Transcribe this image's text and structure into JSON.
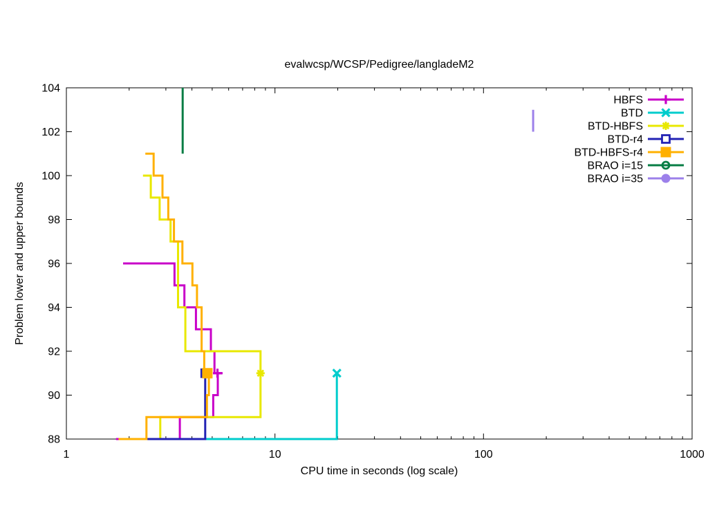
{
  "chart_data": {
    "type": "line",
    "title": "evalwcsp/WCSP/Pedigree/langladeM2",
    "xlabel": "CPU time in seconds (log scale)",
    "ylabel": "Problem lower and upper bounds",
    "x_scale": "log",
    "grid": false,
    "legend_position": "top-right",
    "xlim": [
      1,
      1000
    ],
    "ylim": [
      88,
      104
    ],
    "x_ticks": [
      1,
      10,
      100,
      1000
    ],
    "x_tick_labels": [
      "1",
      "10",
      "100",
      "1000"
    ],
    "y_ticks": [
      88,
      90,
      92,
      94,
      96,
      98,
      100,
      102,
      104
    ],
    "y_tick_labels": [
      "88",
      "90",
      "92",
      "94",
      "96",
      "98",
      "100",
      "102",
      "104"
    ],
    "series": [
      {
        "name": "HBFS",
        "color": "#c800c8",
        "marker": "plus",
        "lines": [
          [
            [
              1.87,
              96
            ],
            [
              3.3,
              96
            ],
            [
              3.3,
              95
            ],
            [
              3.68,
              95
            ],
            [
              3.68,
              94
            ],
            [
              4.18,
              94
            ],
            [
              4.18,
              93
            ],
            [
              4.93,
              93
            ],
            [
              4.93,
              92
            ],
            [
              5.13,
              92
            ],
            [
              5.13,
              91
            ],
            [
              5.61,
              91
            ]
          ],
          [
            [
              1.73,
              88
            ],
            [
              3.5,
              88
            ],
            [
              3.5,
              89
            ],
            [
              5.06,
              89
            ],
            [
              5.06,
              90
            ],
            [
              5.32,
              90
            ],
            [
              5.32,
              91
            ],
            [
              5.61,
              91
            ]
          ]
        ],
        "final_point": [
          5.3,
          91
        ]
      },
      {
        "name": "BTD",
        "color": "#00cccc",
        "marker": "cross",
        "lines": [
          [
            [
              1.78,
              88
            ],
            [
              19.8,
              88
            ],
            [
              19.8,
              91
            ]
          ]
        ],
        "final_point": [
          19.8,
          91
        ]
      },
      {
        "name": "BTD-HBFS",
        "color": "#e8e800",
        "marker": "asterisk",
        "lines": [
          [
            [
              2.33,
              100
            ],
            [
              2.54,
              100
            ],
            [
              2.54,
              99
            ],
            [
              2.8,
              99
            ],
            [
              2.8,
              98
            ],
            [
              3.16,
              98
            ],
            [
              3.16,
              97
            ],
            [
              3.43,
              97
            ],
            [
              3.43,
              94
            ],
            [
              3.72,
              94
            ],
            [
              3.72,
              92
            ],
            [
              8.53,
              92
            ],
            [
              8.53,
              91
            ]
          ],
          [
            [
              1.78,
              88
            ],
            [
              2.82,
              88
            ],
            [
              2.82,
              89
            ],
            [
              8.53,
              89
            ],
            [
              8.53,
              91
            ]
          ]
        ],
        "final_point": [
          8.53,
          91
        ]
      },
      {
        "name": "BTD-r4",
        "color": "#2222b4",
        "marker": "open-square",
        "lines": [
          [
            [
              1.78,
              88
            ],
            [
              4.63,
              88
            ],
            [
              4.63,
              91
            ]
          ]
        ],
        "final_point": [
          4.63,
          91
        ]
      },
      {
        "name": "BTD-HBFS-r4",
        "color": "#ffb000",
        "marker": "filled-square",
        "lines": [
          [
            [
              2.39,
              101
            ],
            [
              2.62,
              101
            ],
            [
              2.62,
              100
            ],
            [
              2.89,
              100
            ],
            [
              2.89,
              99
            ],
            [
              3.08,
              99
            ],
            [
              3.08,
              98
            ],
            [
              3.28,
              98
            ],
            [
              3.28,
              97
            ],
            [
              3.6,
              97
            ],
            [
              3.6,
              96
            ],
            [
              4.02,
              96
            ],
            [
              4.02,
              95
            ],
            [
              4.23,
              95
            ],
            [
              4.23,
              94
            ],
            [
              4.45,
              94
            ],
            [
              4.45,
              92
            ],
            [
              4.58,
              92
            ],
            [
              4.58,
              91
            ],
            [
              4.95,
              91
            ]
          ],
          [
            [
              1.78,
              88
            ],
            [
              2.42,
              88
            ],
            [
              2.42,
              89
            ],
            [
              4.72,
              89
            ],
            [
              4.72,
              90
            ],
            [
              4.82,
              90
            ],
            [
              4.82,
              91
            ],
            [
              4.95,
              91
            ]
          ]
        ],
        "final_point": [
          4.74,
          91
        ]
      },
      {
        "name": "BRAO i=15",
        "color": "#077d44",
        "marker": "open-circle",
        "lines": [
          [
            [
              3.61,
              101
            ],
            [
              3.61,
              104
            ]
          ]
        ],
        "final_point": null
      },
      {
        "name": "BRAO i=35",
        "color": "#9c80ea",
        "marker": "filled-circle",
        "lines": [
          [
            [
              173,
              102
            ],
            [
              173,
              103
            ]
          ]
        ],
        "final_point": null
      }
    ]
  }
}
